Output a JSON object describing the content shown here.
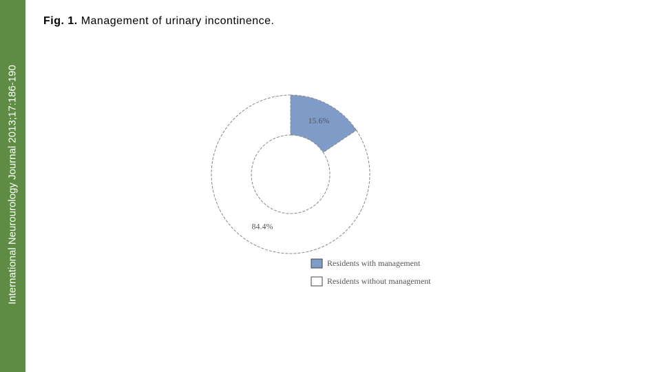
{
  "sidebar": "International Neurourology Journal 2013;17:186-190",
  "caption_label": "Fig. 1.",
  "chart_data": {
    "type": "pie",
    "title": "Management of urinary incontinence.",
    "categories": [
      "Residents with management",
      "Residents without management"
    ],
    "values": [
      15.6,
      84.4
    ],
    "value_labels": [
      "15.6%",
      "84.4%"
    ],
    "colors": [
      "#7f9cc9",
      "#ffffff"
    ],
    "donut": true
  }
}
